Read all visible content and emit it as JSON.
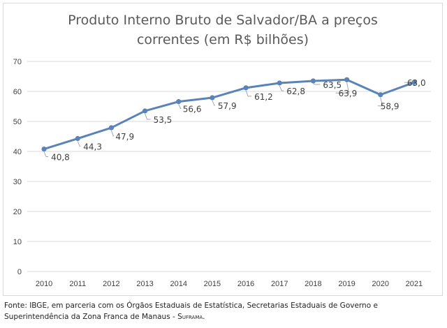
{
  "chart_data": {
    "type": "line",
    "title_lines": [
      "Produto Interno Bruto de Salvador/BA a preços",
      "correntes (em R$ bilhões)"
    ],
    "xlabel": "",
    "ylabel": "",
    "categories": [
      "2010",
      "2011",
      "2012",
      "2013",
      "2014",
      "2015",
      "2016",
      "2017",
      "2018",
      "2019",
      "2020",
      "2021"
    ],
    "series": [
      {
        "values": [
          40.8,
          44.3,
          47.9,
          53.5,
          56.6,
          57.9,
          61.2,
          62.8,
          63.5,
          63.9,
          58.9,
          63.0
        ],
        "data_labels": [
          "40,8",
          "44,3",
          "47,9",
          "53,5",
          "56,6",
          "57,9",
          "61,2",
          "62,8",
          "63,5",
          "63,9",
          "58,9",
          "63,0"
        ],
        "color": "#5a83b8"
      }
    ],
    "ylim": [
      0,
      70
    ],
    "yticks": [
      0,
      10,
      20,
      30,
      40,
      50,
      60,
      70
    ],
    "grid": true,
    "legend": "none"
  },
  "source": {
    "text": "Fonte: IBGE, em parceria com os Órgãos Estaduais de Estatística, Secretarias Estaduais de Governo e Superintendência da Zona Franca de Manaus - ",
    "suframa": "Suframa",
    "end": "."
  },
  "colors": {
    "line": "#5a83b8",
    "grid": "#d9d9d9",
    "leader": "#a6a6a6"
  }
}
